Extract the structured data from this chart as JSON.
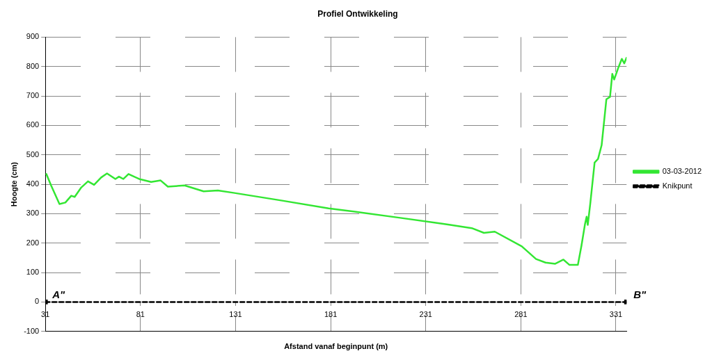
{
  "chart_data": {
    "type": "line",
    "title": "Profiel Ontwikkeling",
    "xlabel": "Afstand vanaf beginpunt (m)",
    "ylabel": "Hoogte (cm)",
    "xlim": [
      31,
      336.6
    ],
    "xticks": [
      31,
      81,
      131,
      181,
      231,
      281,
      331
    ],
    "ylim": [
      -100,
      900
    ],
    "yticks": [
      -100,
      0,
      100,
      200,
      300,
      400,
      500,
      600,
      700,
      800,
      900
    ],
    "grid": true,
    "legend": "right",
    "marker": "none",
    "line_style": "solid",
    "series": [
      {
        "name": "03-03-2012",
        "color": "#33e633",
        "x": [
          31.5,
          34,
          38.4,
          41.5,
          44.6,
          46.4,
          49.7,
          53.4,
          56.6,
          60.3,
          63.4,
          67.8,
          69.7,
          72,
          74.7,
          80.3,
          86.6,
          91.6,
          95.4,
          104.2,
          114.2,
          121.7,
          129.9,
          155,
          179.9,
          195,
          217.6,
          238.9,
          242.7,
          255.2,
          261.6,
          267.3,
          281.5,
          289,
          294,
          299.1,
          303.4,
          306.6,
          311,
          312.9,
          314.7,
          315.6,
          316.2,
          317.5,
          319.8,
          321.6,
          323.5,
          326,
          327.9,
          329.1,
          330.1,
          332.2,
          334.1,
          335.4,
          336.6
        ],
        "values": [
          435,
          396,
          333,
          338,
          361,
          357,
          388,
          410,
          398,
          423,
          437,
          418,
          426,
          418,
          435,
          418,
          408,
          413,
          392,
          396,
          376,
          379,
          371,
          345,
          318,
          306,
          286,
          267,
          263,
          251,
          235,
          239,
          189,
          146,
          134,
          130,
          144,
          126,
          126,
          192,
          263,
          290,
          262,
          333,
          474,
          486,
          533,
          689,
          697,
          775,
          756,
          795,
          826,
          811,
          830
        ]
      },
      {
        "name": "Knikpunt",
        "color": "#000000",
        "type": "line",
        "line_style": "dashed",
        "marker": "square",
        "x": [
          31,
          336.6
        ],
        "values": [
          0,
          0
        ]
      }
    ],
    "annotations": [
      {
        "text": "A\"",
        "x": 31,
        "y": 0
      },
      {
        "text": "B\"",
        "x": 336.6,
        "y": 0
      }
    ]
  }
}
